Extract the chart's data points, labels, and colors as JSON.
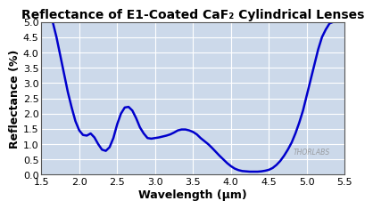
{
  "title": "Reflectance of E1-Coated CaF₂ Cylindrical Lenses",
  "xlabel": "Wavelength (μm)",
  "ylabel": "Reflectance (%)",
  "xlim": [
    1.5,
    5.5
  ],
  "ylim": [
    0.0,
    5.0
  ],
  "xticks": [
    1.5,
    2.0,
    2.5,
    3.0,
    3.5,
    4.0,
    4.5,
    5.0,
    5.5
  ],
  "yticks": [
    0.0,
    0.5,
    1.0,
    1.5,
    2.0,
    2.5,
    3.0,
    3.5,
    4.0,
    4.5,
    5.0
  ],
  "line_color": "#0000cc",
  "bg_color": "#ccd9ea",
  "grid_color": "#ffffff",
  "fig_color": "#ffffff",
  "watermark": "THORLABS",
  "curve_x": [
    1.65,
    1.7,
    1.75,
    1.8,
    1.85,
    1.9,
    1.95,
    2.0,
    2.05,
    2.1,
    2.15,
    2.2,
    2.25,
    2.3,
    2.35,
    2.4,
    2.45,
    2.5,
    2.55,
    2.6,
    2.65,
    2.7,
    2.75,
    2.8,
    2.85,
    2.9,
    2.95,
    3.0,
    3.05,
    3.1,
    3.15,
    3.2,
    3.25,
    3.3,
    3.35,
    3.4,
    3.45,
    3.5,
    3.55,
    3.6,
    3.65,
    3.7,
    3.75,
    3.8,
    3.85,
    3.9,
    3.95,
    4.0,
    4.05,
    4.1,
    4.15,
    4.2,
    4.25,
    4.3,
    4.35,
    4.4,
    4.45,
    4.5,
    4.55,
    4.6,
    4.65,
    4.7,
    4.75,
    4.8,
    4.85,
    4.9,
    4.95,
    5.0,
    5.05,
    5.1,
    5.15,
    5.2,
    5.25,
    5.3,
    5.35
  ],
  "curve_y": [
    5.0,
    4.5,
    3.9,
    3.3,
    2.7,
    2.2,
    1.75,
    1.45,
    1.3,
    1.28,
    1.35,
    1.22,
    1.0,
    0.82,
    0.78,
    0.9,
    1.2,
    1.65,
    2.0,
    2.2,
    2.22,
    2.1,
    1.85,
    1.55,
    1.35,
    1.2,
    1.18,
    1.2,
    1.22,
    1.25,
    1.28,
    1.32,
    1.38,
    1.45,
    1.48,
    1.48,
    1.45,
    1.4,
    1.32,
    1.2,
    1.1,
    1.0,
    0.88,
    0.75,
    0.62,
    0.5,
    0.38,
    0.28,
    0.2,
    0.15,
    0.12,
    0.11,
    0.1,
    0.1,
    0.1,
    0.11,
    0.13,
    0.16,
    0.22,
    0.32,
    0.45,
    0.62,
    0.82,
    1.05,
    1.35,
    1.7,
    2.1,
    2.6,
    3.1,
    3.6,
    4.1,
    4.5,
    4.75,
    4.95,
    5.0
  ],
  "title_fontsize": 10,
  "label_fontsize": 9,
  "tick_fontsize": 8
}
